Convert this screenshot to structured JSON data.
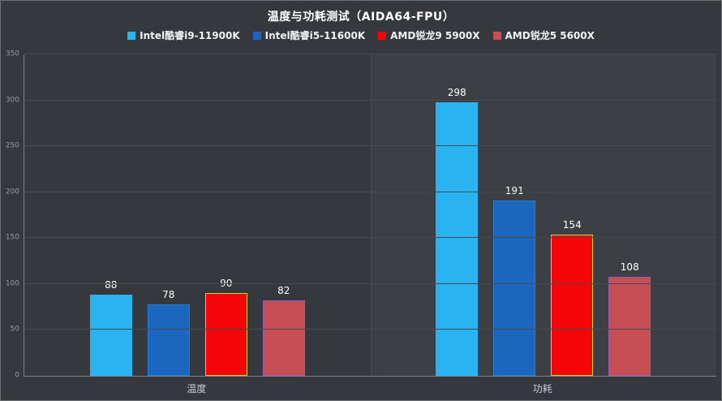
{
  "title": "温度与功耗测试（AIDA64-FPU）",
  "chart_data": {
    "type": "bar",
    "title": "温度与功耗测试（AIDA64-FPU）",
    "categories": [
      "温度",
      "功耗"
    ],
    "series": [
      {
        "name": "Intel酷睿i9-11900K",
        "color": "#29b3f0",
        "border_color": "#29b3f0",
        "values": [
          88,
          298
        ]
      },
      {
        "name": "Intel酷睿i5-11600K",
        "color": "#1b67c0",
        "border_color": "#2e7bd2",
        "values": [
          78,
          191
        ]
      },
      {
        "name": "AMD锐龙9 5900X",
        "color": "#f50408",
        "border_color": "#c3d143",
        "values": [
          90,
          154
        ]
      },
      {
        "name": "AMD锐龙5 5600X",
        "color": "#c44e54",
        "border_color": "#9b59b6",
        "values": [
          82,
          108
        ]
      }
    ],
    "xlabel": "",
    "ylabel": "",
    "ylim": [
      0,
      350
    ],
    "ytick_step": 50,
    "ytick_labels": [
      "0",
      "50",
      "100",
      "150",
      "200",
      "250",
      "300",
      "350"
    ],
    "grid": true,
    "legend_position": "top"
  }
}
